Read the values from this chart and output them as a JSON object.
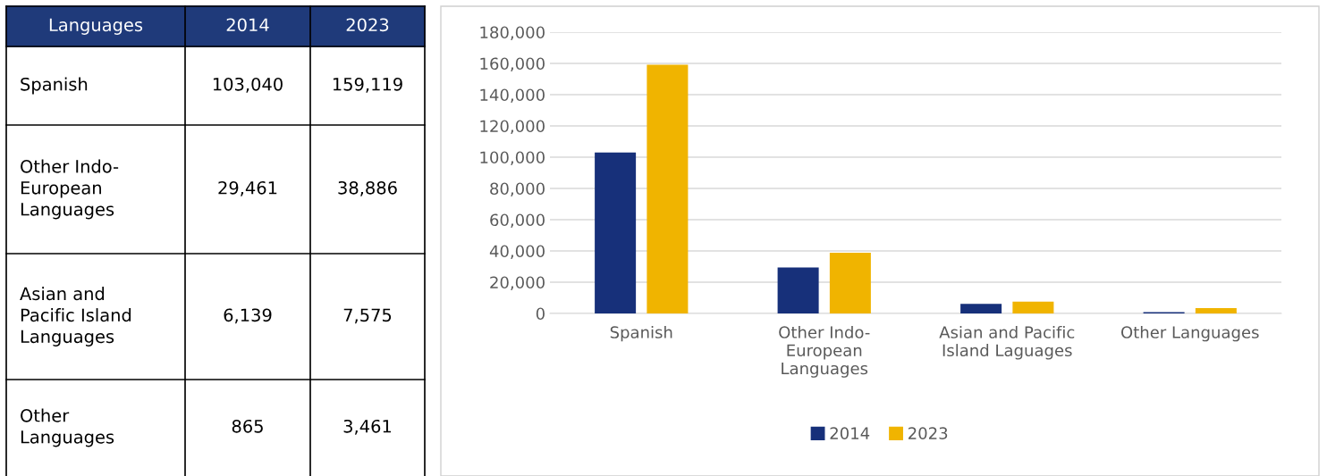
{
  "chart_data": [
    {
      "type": "other",
      "annotations": [
        "Languages",
        "2014",
        "2023",
        "Spanish",
        "103,040",
        "159,119",
        "Other Indo-\nEuropean\nLanguages",
        "29,461",
        "38,886",
        "Asian and\nPacific Island\nLanguages",
        "6,139",
        "7,575",
        "Other\nLanguages",
        "865",
        "3,461"
      ]
    },
    {
      "type": "bar",
      "categories": [
        "Spanish",
        "Other Indo-\nEuropean\nLanguages",
        "Asian and Pacific\nIsland Laguages",
        "Other Languages"
      ],
      "series": [
        {
          "name": "2014",
          "color": "#17307a",
          "values": [
            103040,
            29461,
            6139,
            865
          ]
        },
        {
          "name": "2023",
          "color": "#f0b400",
          "values": [
            159119,
            38886,
            7575,
            3461
          ]
        }
      ],
      "ylim": [
        0,
        180000
      ],
      "yticks": [
        {
          "value": 0,
          "label": "0"
        },
        {
          "value": 20000,
          "label": "20,000"
        },
        {
          "value": 40000,
          "label": "40,000"
        },
        {
          "value": 60000,
          "label": "60,000"
        },
        {
          "value": 80000,
          "label": "80,000"
        },
        {
          "value": 100000,
          "label": "100,000"
        },
        {
          "value": 120000,
          "label": "120,000"
        },
        {
          "value": 140000,
          "label": "140,000"
        },
        {
          "value": 160000,
          "label": "160,000"
        },
        {
          "value": 180000,
          "label": "180,000"
        }
      ],
      "grid": "y",
      "legend": "bottom"
    }
  ]
}
